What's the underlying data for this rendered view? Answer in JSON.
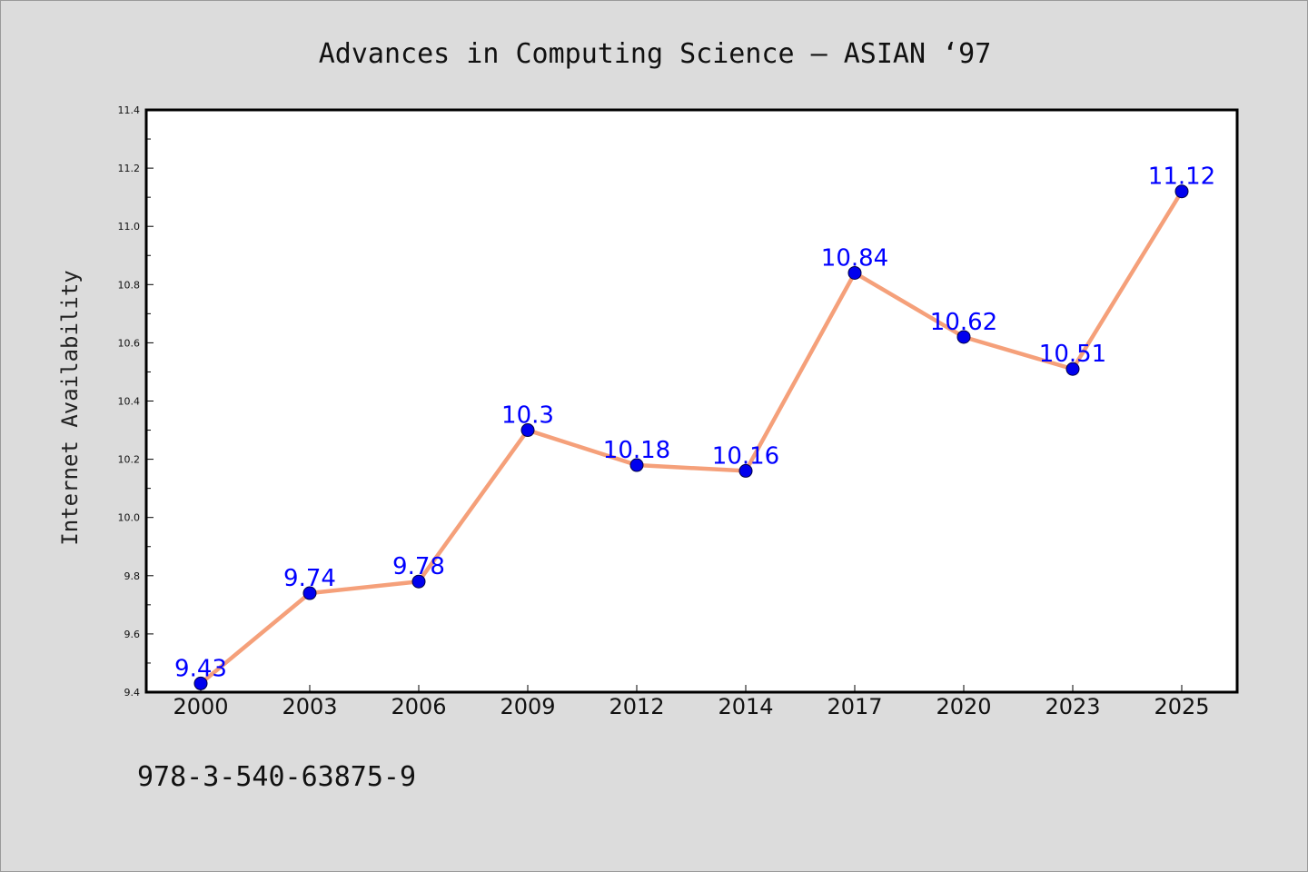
{
  "chart_data": {
    "type": "line",
    "title": "Advances in Computing Science – ASIAN ‘97",
    "xlabel": "",
    "ylabel": "Internet Availability",
    "categories": [
      "2000",
      "2003",
      "2006",
      "2009",
      "2012",
      "2014",
      "2017",
      "2020",
      "2023",
      "2025"
    ],
    "series": [
      {
        "values": [
          9.43,
          9.74,
          9.78,
          10.3,
          10.18,
          10.16,
          10.84,
          10.62,
          10.51,
          11.12
        ],
        "data_labels": [
          "9.43",
          "9.74",
          "9.78",
          "10.3",
          "10.18",
          "10.16",
          "10.84",
          "10.62",
          "10.51",
          "11.12"
        ]
      }
    ],
    "ylim": [
      9.4,
      11.4
    ],
    "yticks": [
      "9.4",
      "9.6",
      "9.8",
      "10.0",
      "10.2",
      "10.4",
      "10.6",
      "10.8",
      "11.0",
      "11.2",
      "11.4"
    ],
    "grid": false,
    "legend": "none",
    "footer": "978-3-540-63875-9",
    "colors": {
      "line": "#f5a07a",
      "marker": "#0000ee",
      "label": "#0000ff",
      "background": "#dcdcdc",
      "plot_background": "#ffffff"
    }
  }
}
